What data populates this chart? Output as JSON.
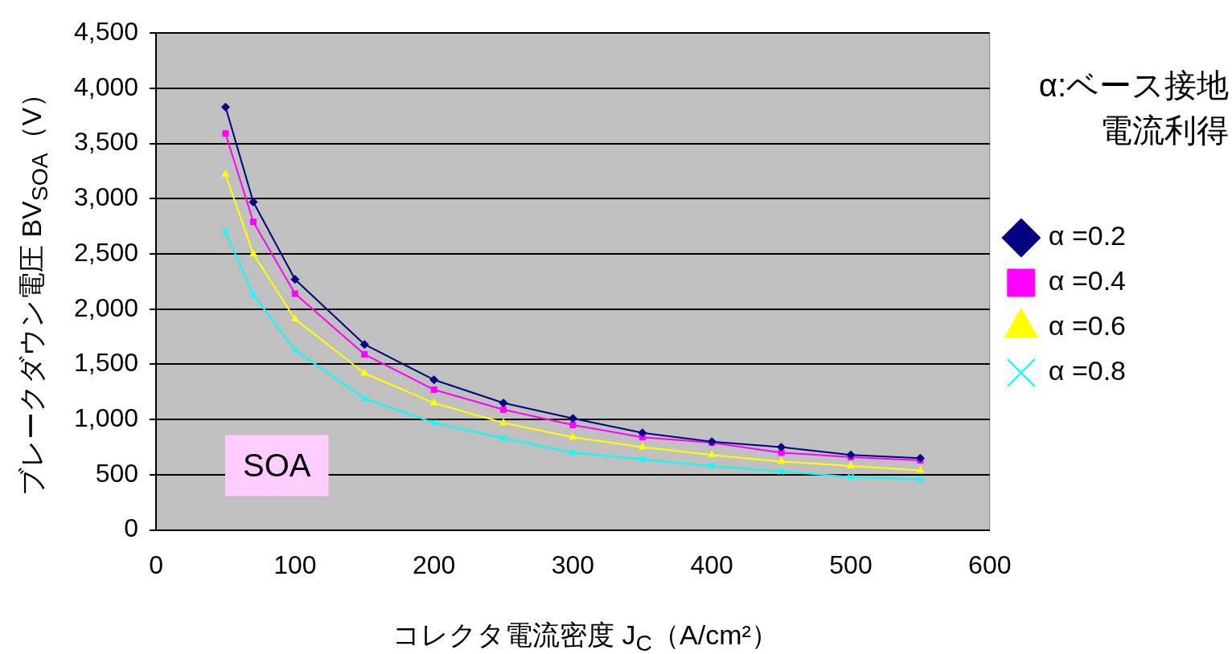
{
  "chart_data": {
    "type": "line",
    "xlabel": "コレクタ電流密度 J$_{C}$（A/cm²）",
    "ylabel": "ブレークダウン電圧 BV$_{SOA}$（V）",
    "legend_title": "α:ベース接地電流利得",
    "legend": "right",
    "grid": "y",
    "annotations": [
      "SOA"
    ],
    "x": [
      50,
      70,
      100,
      150,
      200,
      250,
      300,
      350,
      400,
      450,
      500,
      550
    ],
    "xlim": [
      0,
      600
    ],
    "xticks": [
      0,
      100,
      200,
      300,
      400,
      500,
      600
    ],
    "ylim": [
      0,
      4500
    ],
    "yticks": [
      {
        "value": 0,
        "label": "0"
      },
      {
        "value": 500,
        "label": "500"
      },
      {
        "value": 1000,
        "label": "1,000"
      },
      {
        "value": 1500,
        "label": "1,500"
      },
      {
        "value": 2000,
        "label": "2,000"
      },
      {
        "value": 2500,
        "label": "2,500"
      },
      {
        "value": 3000,
        "label": "3,000"
      },
      {
        "value": 3500,
        "label": "3,500"
      },
      {
        "value": 4000,
        "label": "4,000"
      },
      {
        "value": 4500,
        "label": "4,500"
      }
    ],
    "series": [
      {
        "name": "α =0.2",
        "color": "#000080",
        "marker": "diamond",
        "values": [
          3830,
          2970,
          2270,
          1680,
          1360,
          1150,
          1010,
          880,
          800,
          750,
          680,
          650
        ]
      },
      {
        "name": "α =0.4",
        "color": "#ff00ff",
        "marker": "square",
        "values": [
          3590,
          2790,
          2140,
          1590,
          1270,
          1090,
          950,
          840,
          790,
          700,
          660,
          630
        ]
      },
      {
        "name": "α =0.6",
        "color": "#ffff00",
        "marker": "triangle",
        "values": [
          3220,
          2500,
          1910,
          1420,
          1150,
          970,
          840,
          750,
          680,
          620,
          580,
          540
        ]
      },
      {
        "name": "α =0.8",
        "color": "#00ffff",
        "marker": "cross",
        "values": [
          2700,
          2130,
          1630,
          1190,
          970,
          830,
          700,
          640,
          580,
          530,
          480,
          460
        ]
      }
    ]
  }
}
